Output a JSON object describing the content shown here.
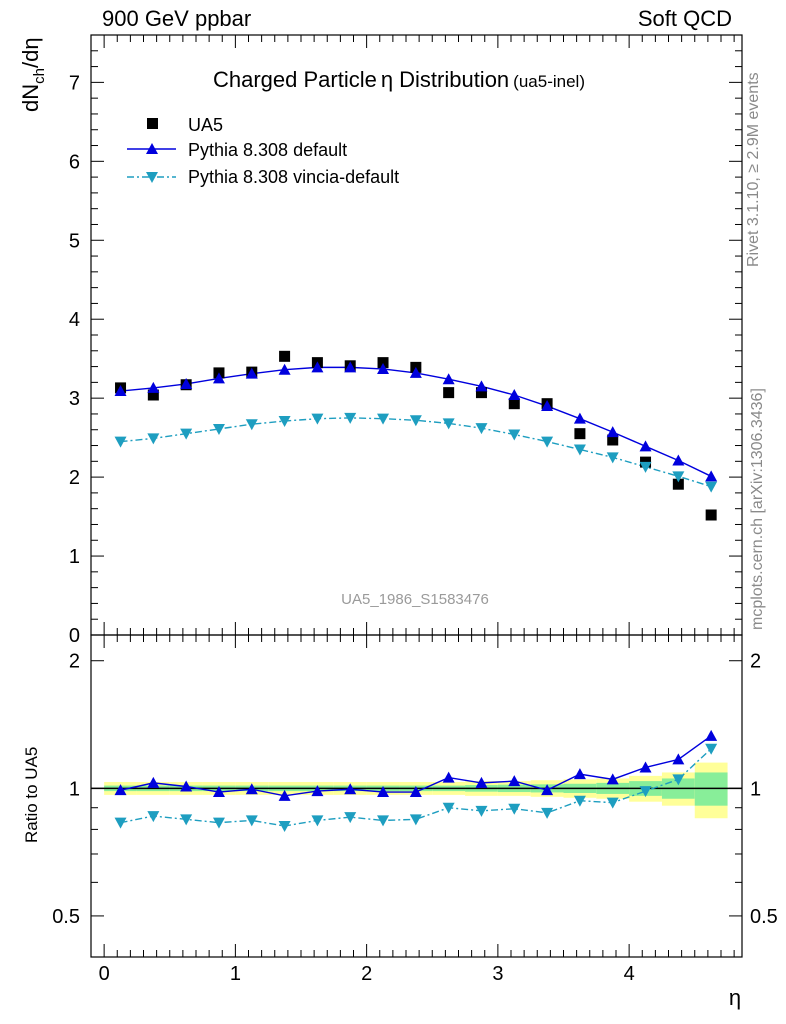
{
  "header": {
    "left": "900 GeV ppbar",
    "right": "Soft QCD"
  },
  "side_labels": {
    "rivet": "Rivet 3.1.10, ≥ 2.9M events",
    "mcplots": "mcplots.cern.ch [arXiv:1306.3436]"
  },
  "chart_data": {
    "type": "scatter",
    "title": "Charged Particle",
    "title_eta": "η",
    "title_rest": "Distribution",
    "subtitle": "(ua5-inel)",
    "watermark": "UA5_1986_S1583476",
    "ylabel_main": "dN",
    "ylabel_main_sub": "ch",
    "ylabel_main_tail": "/dη",
    "ylabel_ratio": "Ratio to UA5",
    "xlabel": "η",
    "xlim": [
      -0.1,
      4.86
    ],
    "ylim_main": [
      0,
      7.6
    ],
    "ylim_ratio": [
      0.4,
      2.3
    ],
    "x_ticks": [
      "0",
      "1",
      "2",
      "3",
      "4"
    ],
    "y_ticks_main": [
      "0",
      "1",
      "2",
      "3",
      "4",
      "5",
      "6",
      "7"
    ],
    "y_ticks_ratio": [
      "0.5",
      "1",
      "2"
    ],
    "x": [
      0.125,
      0.375,
      0.625,
      0.875,
      1.125,
      1.375,
      1.625,
      1.875,
      2.125,
      2.375,
      2.625,
      2.875,
      3.125,
      3.375,
      3.625,
      3.875,
      4.125,
      4.375,
      4.625
    ],
    "bin_width": 0.25,
    "series": [
      {
        "name": "UA5",
        "color": "#000000",
        "marker": "square",
        "values": [
          3.13,
          3.04,
          3.17,
          3.32,
          3.33,
          3.53,
          3.45,
          3.41,
          3.45,
          3.39,
          3.07,
          3.07,
          2.93,
          2.93,
          2.55,
          2.47,
          2.19,
          1.91,
          1.52
        ]
      },
      {
        "name": "Pythia 8.308 default",
        "color": "#0000dd",
        "marker": "triangle-up",
        "line": "solid",
        "values": [
          3.09,
          3.13,
          3.18,
          3.25,
          3.31,
          3.36,
          3.39,
          3.39,
          3.37,
          3.32,
          3.24,
          3.15,
          3.04,
          2.9,
          2.74,
          2.57,
          2.39,
          2.21,
          2.01
        ]
      },
      {
        "name": "Pythia 8.308 vincia-default",
        "color": "#1e9ec0",
        "marker": "triangle-down",
        "line": "dashdot",
        "values": [
          2.45,
          2.49,
          2.55,
          2.61,
          2.67,
          2.71,
          2.74,
          2.75,
          2.74,
          2.72,
          2.68,
          2.62,
          2.54,
          2.45,
          2.35,
          2.25,
          2.13,
          2.01,
          1.88
        ]
      }
    ],
    "ratio": {
      "series": [
        {
          "name": "Pythia 8.308 default",
          "values": [
            0.99,
            1.03,
            1.01,
            0.98,
            0.995,
            0.96,
            0.985,
            0.995,
            0.98,
            0.98,
            1.06,
            1.03,
            1.04,
            0.99,
            1.08,
            1.05,
            1.12,
            1.17,
            1.33
          ]
        },
        {
          "name": "Pythia 8.308 vincia-default",
          "values": [
            0.83,
            0.86,
            0.845,
            0.83,
            0.84,
            0.815,
            0.84,
            0.855,
            0.84,
            0.845,
            0.9,
            0.885,
            0.895,
            0.875,
            0.935,
            0.925,
            0.985,
            1.05,
            1.24
          ]
        }
      ],
      "band_outer": [
        0.035,
        0.035,
        0.035,
        0.035,
        0.035,
        0.035,
        0.035,
        0.035,
        0.035,
        0.035,
        0.035,
        0.04,
        0.04,
        0.045,
        0.05,
        0.055,
        0.07,
        0.09,
        0.15
      ],
      "band_inner": [
        0.015,
        0.015,
        0.015,
        0.015,
        0.015,
        0.015,
        0.015,
        0.015,
        0.015,
        0.015,
        0.015,
        0.018,
        0.02,
        0.022,
        0.025,
        0.03,
        0.04,
        0.055,
        0.09
      ],
      "band_outer_color": "#ffff99",
      "band_inner_color": "#88ee99"
    }
  }
}
